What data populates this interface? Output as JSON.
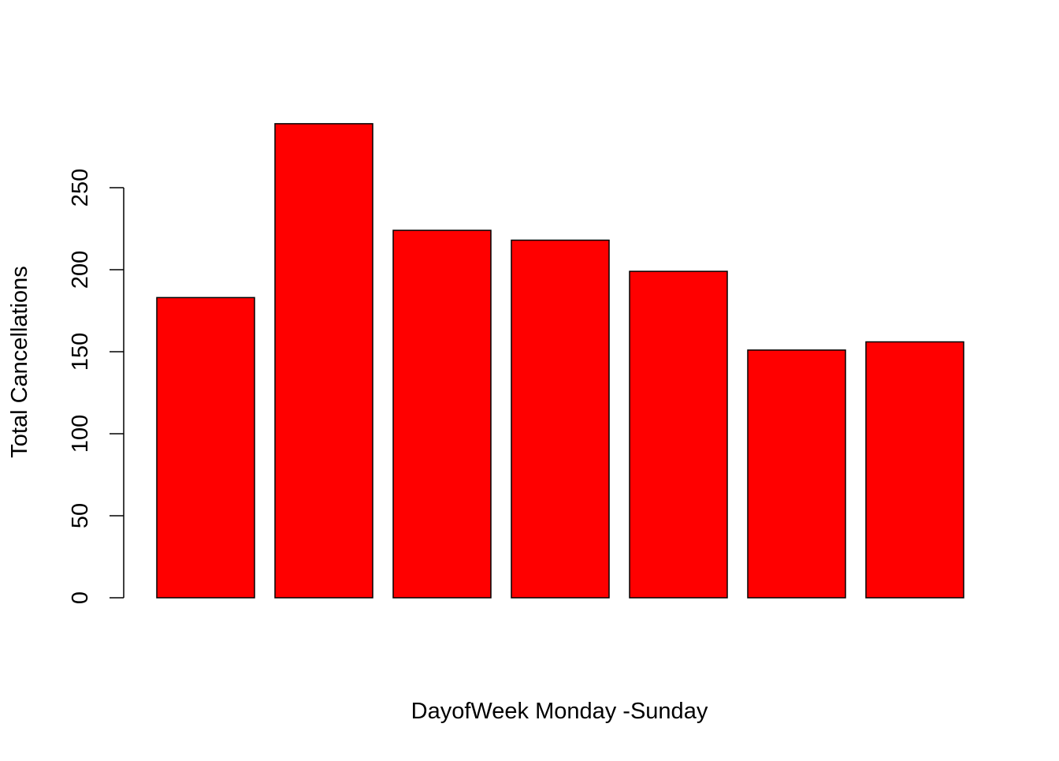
{
  "chart_data": {
    "type": "bar",
    "title": "",
    "xlabel": "DayofWeek Monday -Sunday",
    "ylabel": "Total Cancellations",
    "ylim": [
      0,
      289
    ],
    "yticks": [
      0,
      50,
      100,
      150,
      200,
      250
    ],
    "categories": [
      "",
      "",
      "",
      "",
      "",
      "",
      ""
    ],
    "values": [
      183,
      289,
      224,
      218,
      199,
      151,
      156
    ],
    "bar_color": "#ff0000",
    "bar_border_color": "#000000",
    "grid": false,
    "legend": "none"
  }
}
